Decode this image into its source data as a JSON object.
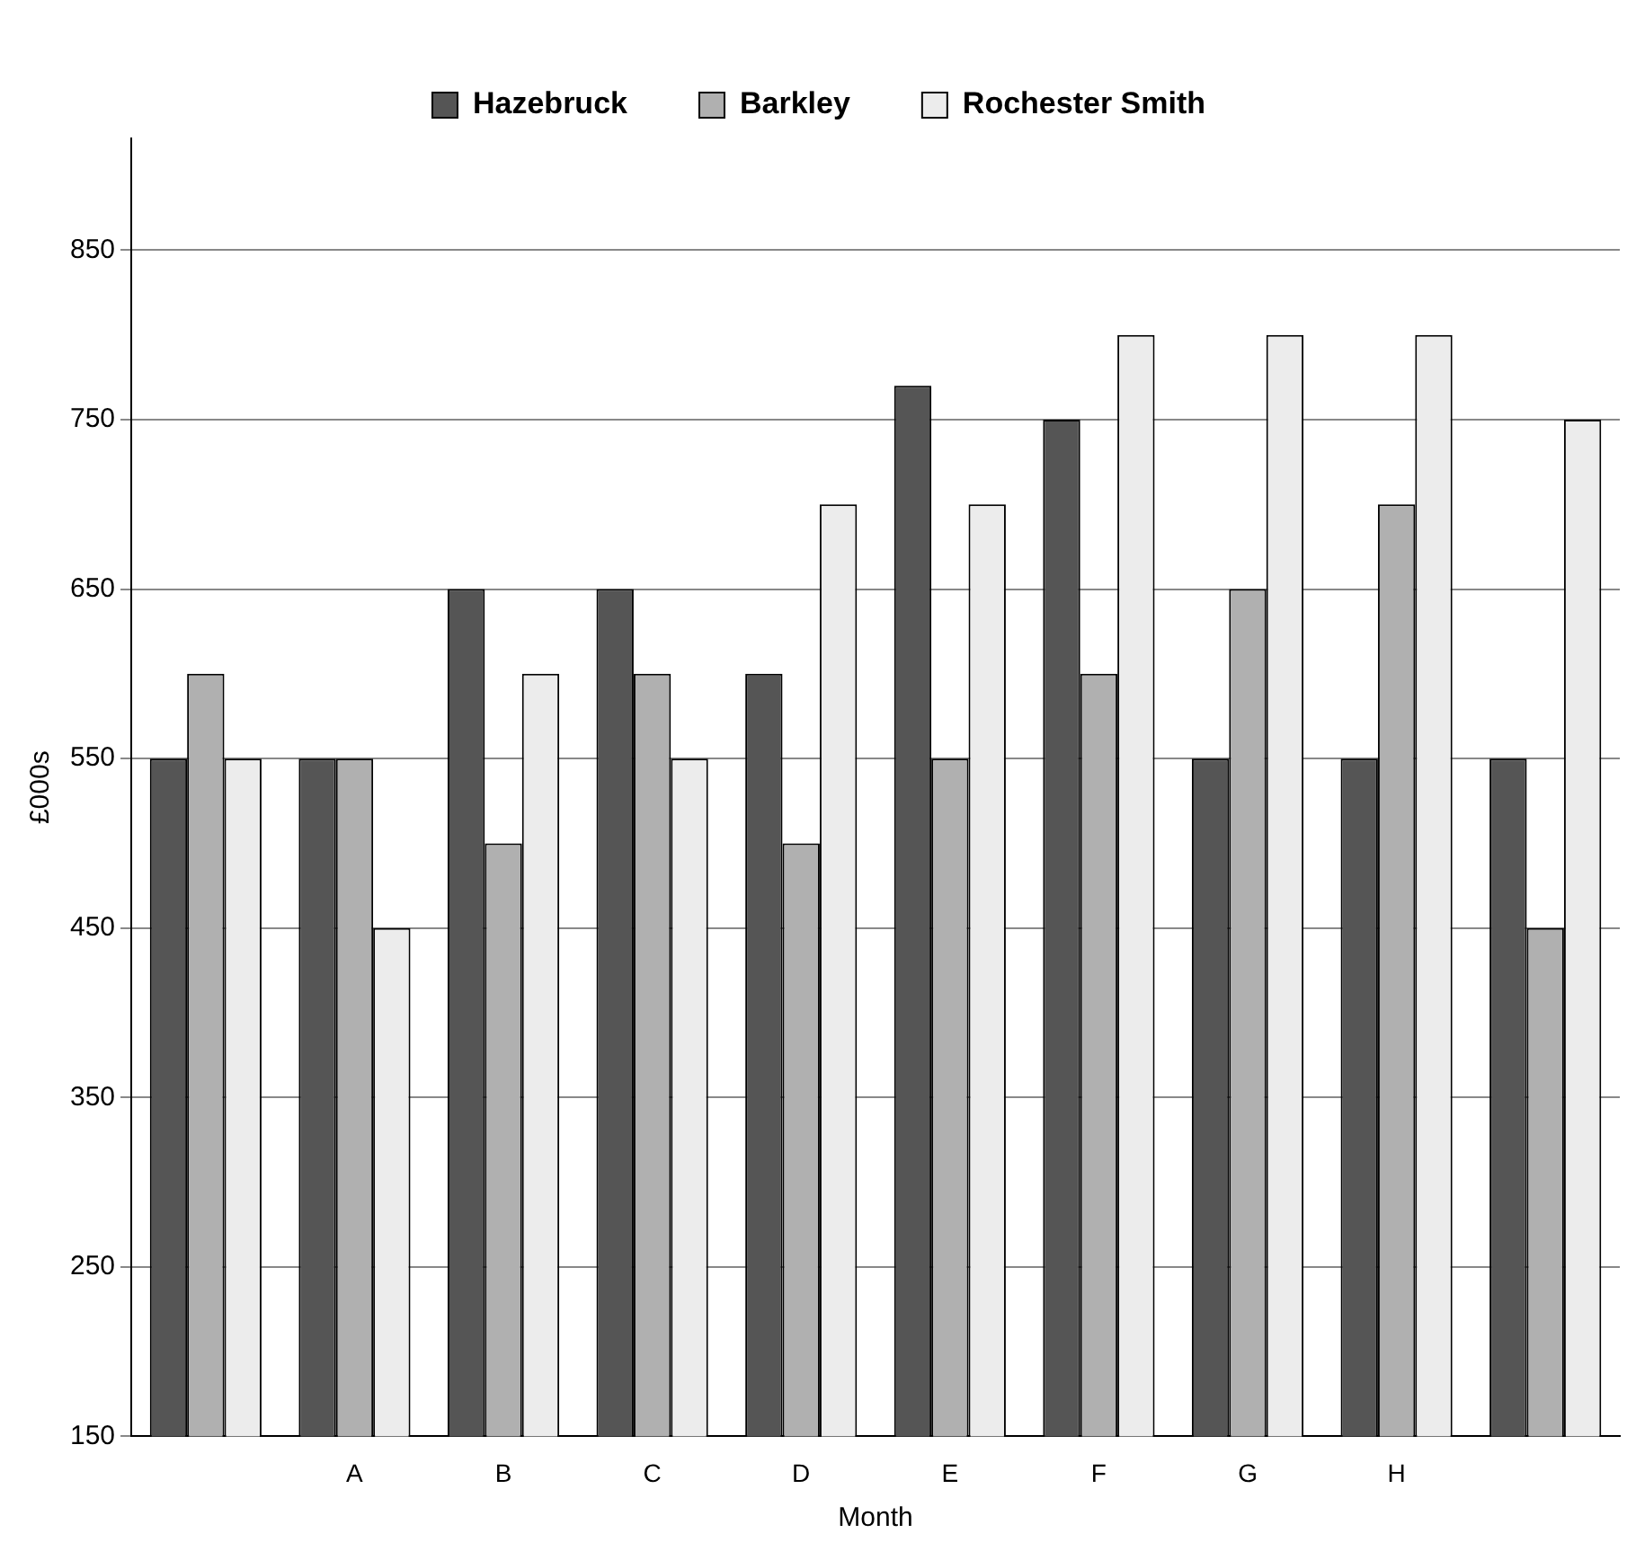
{
  "chart_data": {
    "type": "bar",
    "xlabel": "Month",
    "ylabel": "£000s",
    "categories": [
      null,
      "A",
      "B",
      "C",
      "D",
      "E",
      "F",
      "G",
      "H",
      null
    ],
    "series": [
      {
        "name": "Hazebruck",
        "color": "#555555",
        "values": [
          550,
          550,
          650,
          650,
          600,
          770,
          750,
          550,
          550,
          550
        ]
      },
      {
        "name": "Barkley",
        "color": "#b0b0b0",
        "values": [
          600,
          550,
          500,
          600,
          500,
          550,
          600,
          650,
          700,
          450
        ]
      },
      {
        "name": "Rochester Smith",
        "color": "#ececec",
        "values": [
          550,
          450,
          600,
          550,
          700,
          700,
          800,
          800,
          800,
          750
        ]
      }
    ],
    "ylim": [
      150,
      916
    ],
    "yticks": [
      150,
      250,
      350,
      450,
      550,
      650,
      750,
      850
    ],
    "grid": "y",
    "legend": "top"
  }
}
